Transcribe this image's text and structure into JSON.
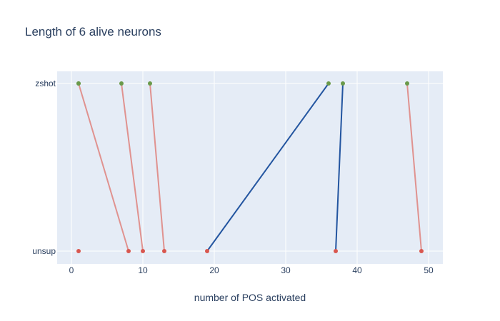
{
  "chart_data": {
    "type": "scatter",
    "title": "Length of 6 alive neurons",
    "xlabel": "number of POS activated",
    "ylabel": "",
    "xlim": [
      -2,
      52
    ],
    "x_ticks": [
      0,
      10,
      20,
      30,
      40,
      50
    ],
    "categories": [
      "unsup",
      "zshot"
    ],
    "grid": true,
    "legend": "none",
    "colors": {
      "plot_bg": "#e5ecf6",
      "grid": "#ffffff",
      "text": "#2a3f5f",
      "zshot_marker": "#6a9a4a",
      "unsup_marker": "#d9574f",
      "decrease_line": "#e0928f",
      "increase_line": "#2355a0"
    },
    "unsup_only_points": [
      1
    ],
    "neurons": [
      {
        "unsup": 8,
        "zshot": 1
      },
      {
        "unsup": 10,
        "zshot": 7
      },
      {
        "unsup": 13,
        "zshot": 11
      },
      {
        "unsup": 19,
        "zshot": 36
      },
      {
        "unsup": 37,
        "zshot": 38
      },
      {
        "unsup": 49,
        "zshot": 47
      }
    ]
  }
}
